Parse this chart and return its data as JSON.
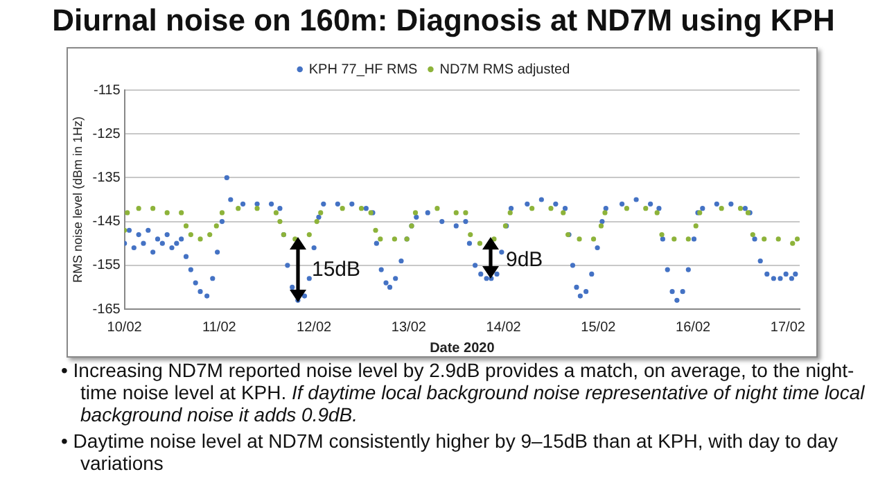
{
  "chart_data": {
    "type": "scatter",
    "title": "Diurnal noise on 160m: Diagnosis at ND7M using KPH",
    "xlabel": "Date 2020",
    "ylabel": "RMS noise level (dBm in 1Hz)",
    "xlim": [
      "2020-02-10",
      "2020-02-17T03:00"
    ],
    "xticks": [
      {
        "value": "2020-02-10",
        "label": "10/02"
      },
      {
        "value": "2020-02-11",
        "label": "11/02"
      },
      {
        "value": "2020-02-12",
        "label": "12/02"
      },
      {
        "value": "2020-02-13",
        "label": "13/02"
      },
      {
        "value": "2020-02-14",
        "label": "14/02"
      },
      {
        "value": "2020-02-15",
        "label": "15/02"
      },
      {
        "value": "2020-02-16",
        "label": "16/02"
      },
      {
        "value": "2020-02-17",
        "label": "17/02"
      }
    ],
    "ylim": [
      -165,
      -115
    ],
    "yticks": [
      -165,
      -155,
      -145,
      -135,
      -125,
      -115
    ],
    "grid": "y",
    "legend": "top",
    "marker": "circle",
    "series": [
      {
        "name": "KPH 77_HF RMS",
        "color": "#4472c4",
        "x": [
          "2020-02-10T00:00",
          "2020-02-10T01:12",
          "2020-02-10T02:24",
          "2020-02-10T03:36",
          "2020-02-10T04:48",
          "2020-02-10T06:00",
          "2020-02-10T07:12",
          "2020-02-10T08:24",
          "2020-02-10T09:36",
          "2020-02-10T10:48",
          "2020-02-10T12:00",
          "2020-02-10T13:12",
          "2020-02-10T14:24",
          "2020-02-10T15:36",
          "2020-02-10T16:48",
          "2020-02-10T18:00",
          "2020-02-10T19:12",
          "2020-02-10T20:53",
          "2020-02-10T22:19",
          "2020-02-10T23:31",
          "2020-02-11T00:43",
          "2020-02-11T01:55",
          "2020-02-11T02:53",
          "2020-02-11T06:00",
          "2020-02-11T09:36",
          "2020-02-11T13:12",
          "2020-02-11T15:22",
          "2020-02-11T16:19",
          "2020-02-11T17:17",
          "2020-02-11T18:29",
          "2020-02-11T19:55",
          "2020-02-11T21:36",
          "2020-02-11T22:48",
          "2020-02-12T00:00",
          "2020-02-12T01:12",
          "2020-02-12T02:24",
          "2020-02-12T06:00",
          "2020-02-12T09:36",
          "2020-02-12T13:12",
          "2020-02-12T14:53",
          "2020-02-12T15:50",
          "2020-02-12T17:02",
          "2020-02-12T18:14",
          "2020-02-12T19:12",
          "2020-02-12T20:38",
          "2020-02-12T22:05",
          "2020-02-12T23:31",
          "2020-02-13T00:43",
          "2020-02-13T01:55",
          "2020-02-13T04:48",
          "2020-02-13T08:24",
          "2020-02-13T12:00",
          "2020-02-13T14:24",
          "2020-02-13T15:22",
          "2020-02-13T16:48",
          "2020-02-13T18:14",
          "2020-02-13T19:41",
          "2020-02-13T20:53",
          "2020-02-13T22:19",
          "2020-02-13T23:31",
          "2020-02-14T00:43",
          "2020-02-14T01:55",
          "2020-02-14T06:00",
          "2020-02-14T09:36",
          "2020-02-14T13:12",
          "2020-02-14T15:36",
          "2020-02-14T16:34",
          "2020-02-14T17:31",
          "2020-02-14T18:29",
          "2020-02-14T19:26",
          "2020-02-14T20:53",
          "2020-02-14T22:19",
          "2020-02-14T23:46",
          "2020-02-15T00:58",
          "2020-02-15T01:55",
          "2020-02-15T06:00",
          "2020-02-15T09:36",
          "2020-02-15T13:12",
          "2020-02-15T15:22",
          "2020-02-15T16:19",
          "2020-02-15T17:31",
          "2020-02-15T18:43",
          "2020-02-15T19:55",
          "2020-02-15T21:22",
          "2020-02-15T22:48",
          "2020-02-16T00:14",
          "2020-02-16T01:12",
          "2020-02-16T02:24",
          "2020-02-16T06:00",
          "2020-02-16T09:36",
          "2020-02-16T13:12",
          "2020-02-16T14:24",
          "2020-02-16T15:36",
          "2020-02-16T17:02",
          "2020-02-16T18:43",
          "2020-02-16T20:24",
          "2020-02-16T22:05",
          "2020-02-16T23:31",
          "2020-02-17T00:58",
          "2020-02-17T01:55"
        ],
        "values": [
          -150,
          -147,
          -151,
          -148,
          -150,
          -147,
          -152,
          -149,
          -150,
          -148,
          -151,
          -150,
          -149,
          -153,
          -156,
          -159,
          -161,
          -162,
          -158,
          -152,
          -145,
          -135,
          -140,
          -141,
          -141,
          -141,
          -142,
          -148,
          -155,
          -160,
          -163,
          -162,
          -158,
          -151,
          -144,
          -141,
          -141,
          -141,
          -142,
          -143,
          -150,
          -156,
          -159,
          -160,
          -158,
          -154,
          -149,
          -146,
          -144,
          -143,
          -145,
          -146,
          -145,
          -150,
          -155,
          -157,
          -158,
          -158,
          -157,
          -152,
          -146,
          -142,
          -141,
          -140,
          -141,
          -142,
          -148,
          -155,
          -160,
          -162,
          -161,
          -157,
          -151,
          -145,
          -142,
          -141,
          -140,
          -141,
          -142,
          -149,
          -156,
          -161,
          -163,
          -161,
          -156,
          -149,
          -143,
          -142,
          -141,
          -141,
          -142,
          -143,
          -149,
          -154,
          -157,
          -158,
          -158,
          -157,
          -158,
          -157
        ]
      },
      {
        "name": "ND7M RMS adjusted",
        "color": "#8db33a",
        "x": [
          "2020-02-10T00:00",
          "2020-02-10T00:43",
          "2020-02-10T03:36",
          "2020-02-10T07:12",
          "2020-02-10T10:48",
          "2020-02-10T14:24",
          "2020-02-10T15:36",
          "2020-02-10T16:48",
          "2020-02-10T19:12",
          "2020-02-10T21:36",
          "2020-02-10T23:17",
          "2020-02-11T00:43",
          "2020-02-11T04:48",
          "2020-02-11T09:36",
          "2020-02-11T14:24",
          "2020-02-11T15:22",
          "2020-02-11T16:19",
          "2020-02-11T19:12",
          "2020-02-11T22:48",
          "2020-02-12T00:43",
          "2020-02-12T01:41",
          "2020-02-12T07:12",
          "2020-02-12T12:00",
          "2020-02-12T14:24",
          "2020-02-12T15:36",
          "2020-02-12T16:48",
          "2020-02-12T20:24",
          "2020-02-12T23:31",
          "2020-02-13T00:43",
          "2020-02-13T01:41",
          "2020-02-13T07:12",
          "2020-02-13T12:00",
          "2020-02-13T14:24",
          "2020-02-13T15:36",
          "2020-02-13T18:00",
          "2020-02-13T21:36",
          "2020-02-14T00:29",
          "2020-02-14T01:41",
          "2020-02-14T07:12",
          "2020-02-14T12:00",
          "2020-02-14T15:07",
          "2020-02-14T16:19",
          "2020-02-14T19:12",
          "2020-02-14T22:48",
          "2020-02-15T00:43",
          "2020-02-15T01:41",
          "2020-02-15T07:12",
          "2020-02-15T12:00",
          "2020-02-15T14:53",
          "2020-02-15T16:05",
          "2020-02-15T19:12",
          "2020-02-15T22:48",
          "2020-02-16T00:43",
          "2020-02-16T01:41",
          "2020-02-16T07:12",
          "2020-02-16T12:00",
          "2020-02-16T13:55",
          "2020-02-16T15:07",
          "2020-02-16T18:00",
          "2020-02-16T21:36",
          "2020-02-17T01:12",
          "2020-02-17T02:24"
        ],
        "values": [
          -147,
          -143,
          -142,
          -142,
          -143,
          -143,
          -146,
          -148,
          -149,
          -148,
          -146,
          -143,
          -142,
          -142,
          -143,
          -145,
          -148,
          -149,
          -148,
          -145,
          -143,
          -142,
          -142,
          -143,
          -147,
          -149,
          -149,
          -149,
          -146,
          -143,
          -142,
          -143,
          -143,
          -148,
          -150,
          -149,
          -146,
          -143,
          -142,
          -142,
          -143,
          -148,
          -149,
          -149,
          -146,
          -143,
          -142,
          -142,
          -143,
          -148,
          -149,
          -149,
          -146,
          -143,
          -142,
          -142,
          -143,
          -148,
          -149,
          -149,
          -150,
          -149
        ]
      }
    ],
    "annotations": [
      "15dB",
      "9dB",
      "• Increasing ND7M reported noise level by 2.9dB provides a match, on average, to the night-time noise level at KPH.",
      "If daytime local background noise representative of night time local background noise it adds 0.9dB.",
      "• Daytime noise  level at ND7M consistently higher by 9–15dB than at KPH, with day to day variations"
    ]
  }
}
